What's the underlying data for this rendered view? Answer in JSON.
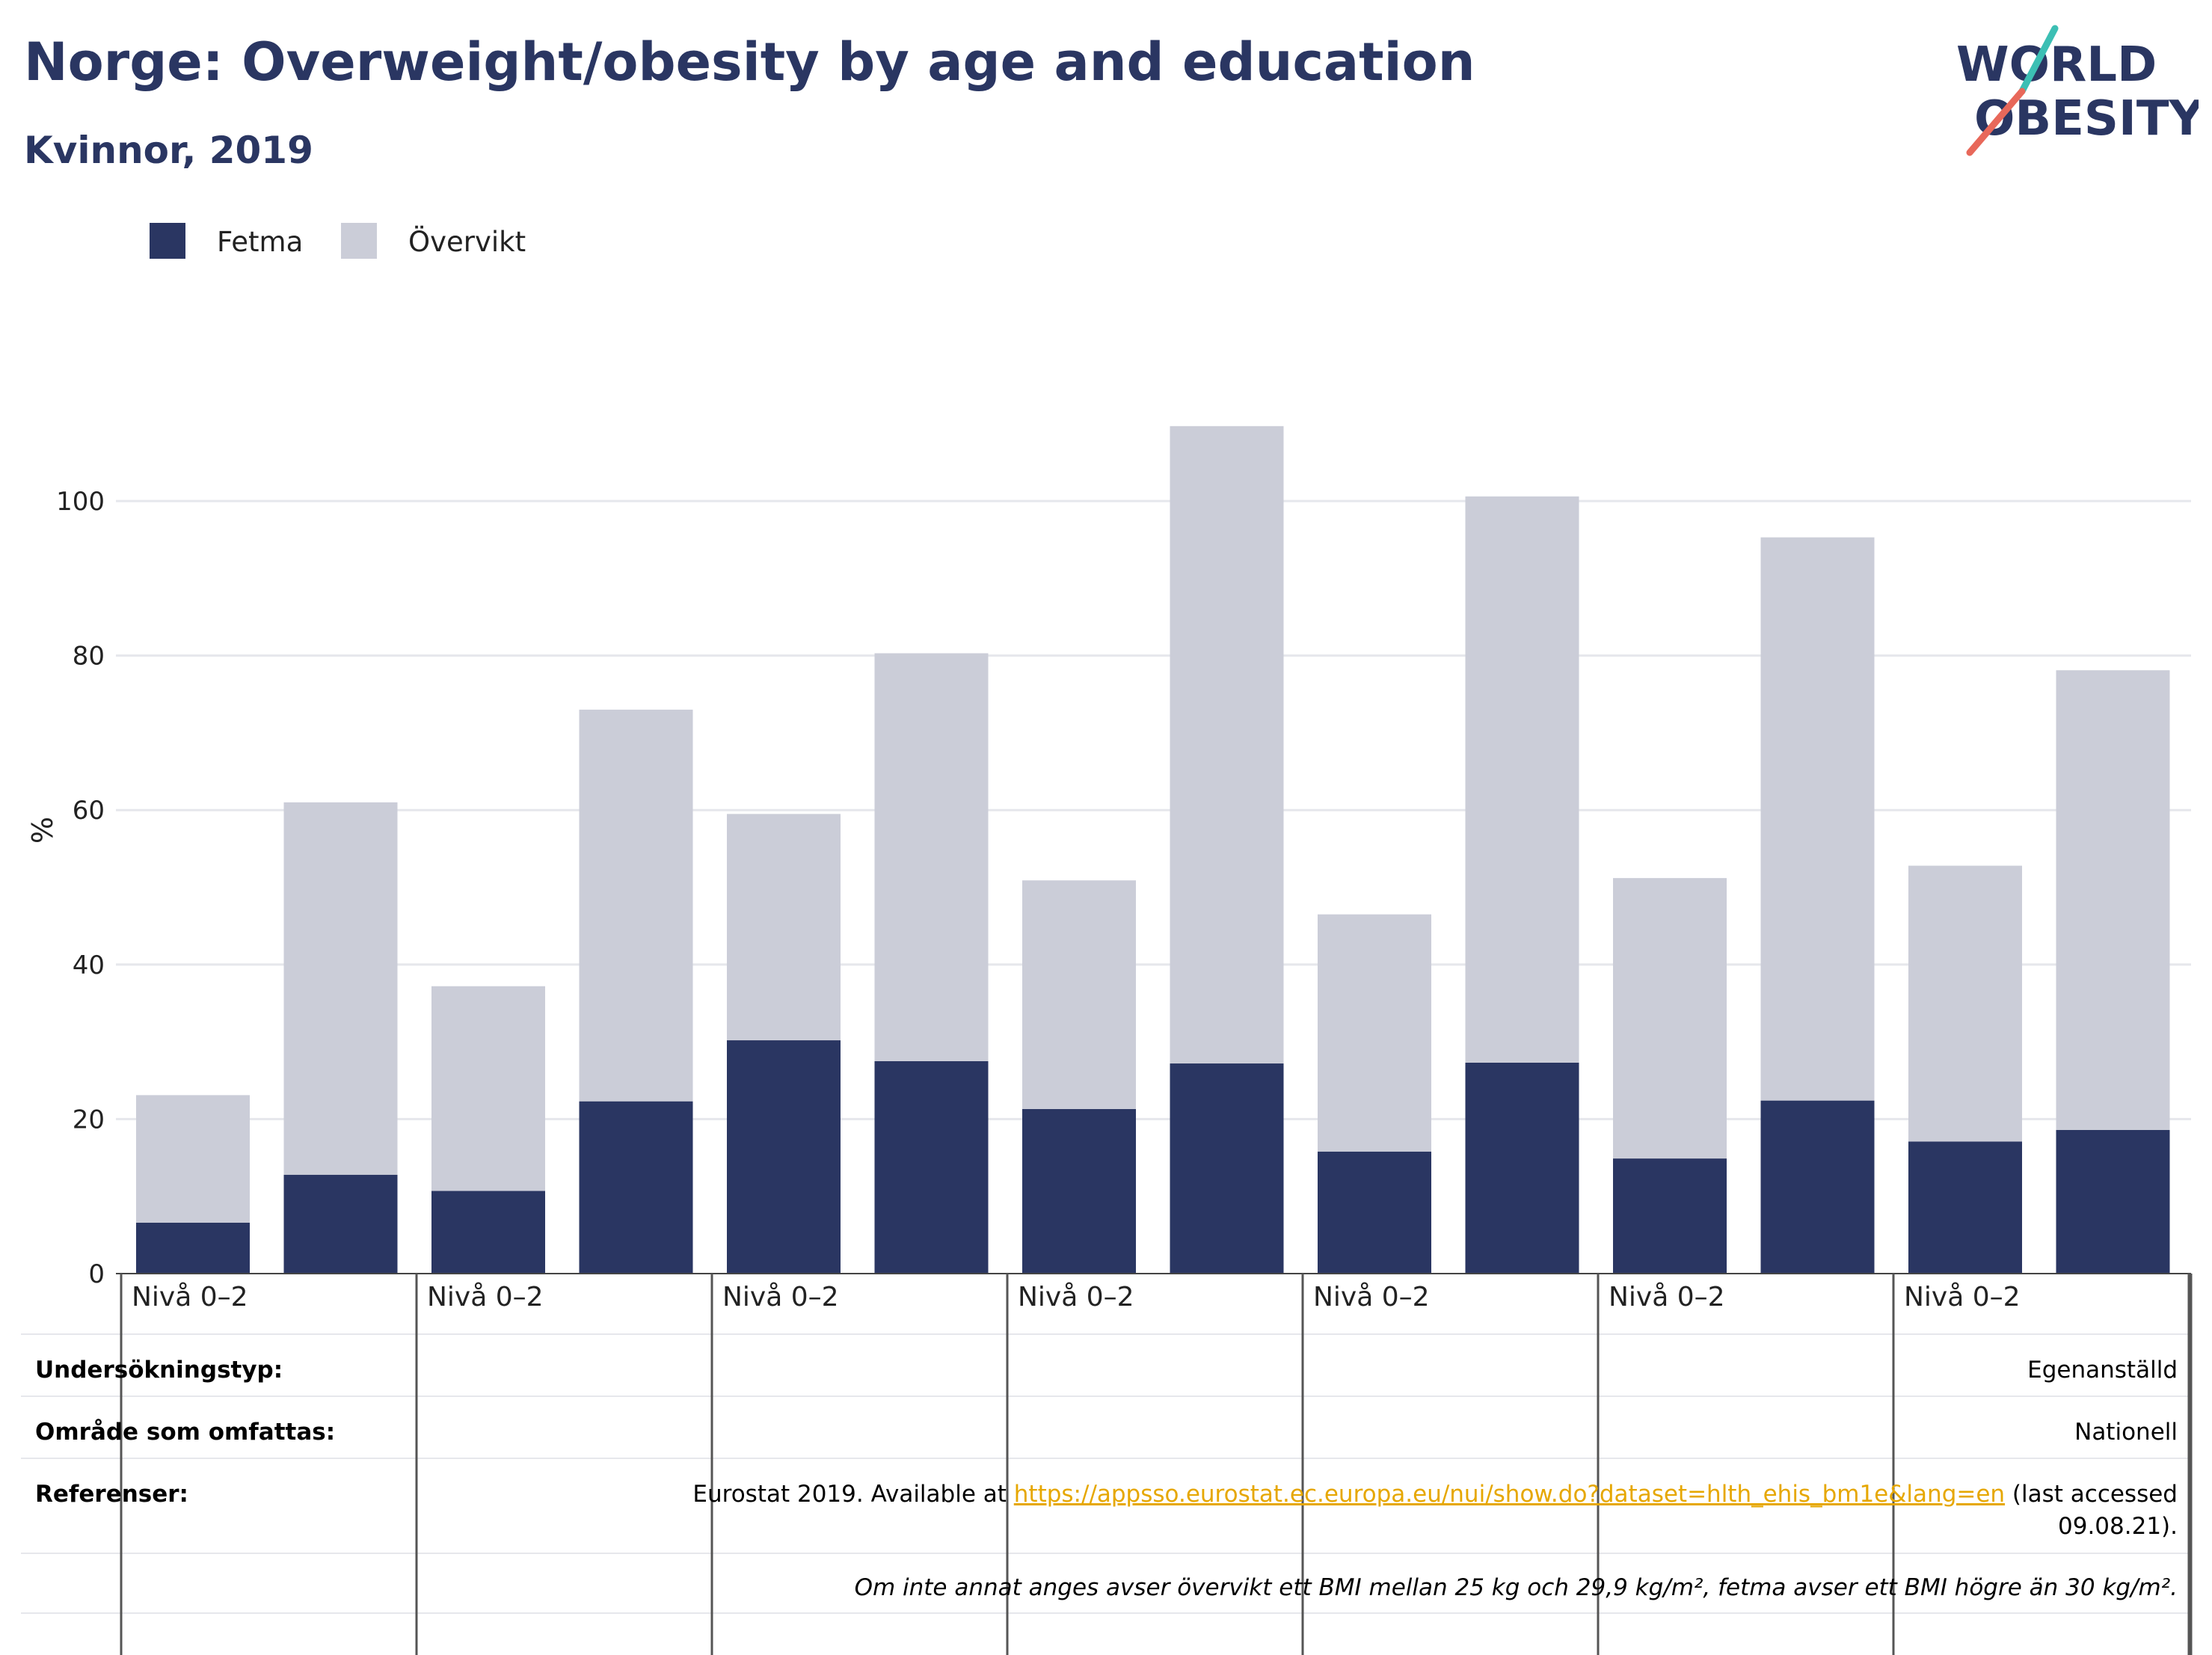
{
  "header": {
    "title": "Norge: Overweight/obesity by age and education",
    "subtitle": "Kvinnor, 2019"
  },
  "logo": {
    "line1": "WORLD",
    "line2": "OBESITY",
    "slash_color_top": "#3cbfb4",
    "slash_color_bottom": "#e8685a"
  },
  "legend": [
    {
      "name": "Fetma",
      "color": "#2a3662"
    },
    {
      "name": "Övervikt",
      "color": "#cbcdd8"
    }
  ],
  "chart_data": {
    "type": "bar",
    "stacked": true,
    "ylabel": "%",
    "ylim": [
      0,
      110
    ],
    "yticks": [
      0,
      20,
      40,
      60,
      80,
      100
    ],
    "grid": true,
    "legend_position": "top-left",
    "group_labels": [
      "Nivå 0–2",
      "Nivå 0–2",
      "Nivå 0–2",
      "Nivå 0–2",
      "Nivå 0–2",
      "Nivå 0–2",
      "Nivå 0–2"
    ],
    "bars_per_group": 2,
    "series": [
      {
        "name": "Fetma",
        "color": "#2a3662",
        "values": [
          6.6,
          12.8,
          10.7,
          22.3,
          30.2,
          27.5,
          21.3,
          27.2,
          15.8,
          27.3,
          14.9,
          22.4,
          17.1,
          18.6
        ]
      },
      {
        "name": "Övervikt",
        "color": "#cbcdd8",
        "values": [
          16.5,
          48.2,
          26.5,
          50.7,
          29.3,
          52.8,
          29.6,
          82.5,
          30.7,
          73.3,
          36.3,
          72.9,
          35.7,
          59.5
        ]
      }
    ]
  },
  "table": {
    "rows": [
      {
        "label": "Undersökningstyp:",
        "value": "Egenanställd"
      },
      {
        "label": "Område som omfattas:",
        "value": "Nationell"
      },
      {
        "label": "Referenser:",
        "value_prefix": "Eurostat 2019. Available at ",
        "link": "https://appsso.eurostat.ec.europa.eu/nui/show.do?dataset=hlth_ehis_bm1e&lang=en",
        "value_suffix": " (last accessed",
        "value_line2": "09.08.21)."
      }
    ],
    "footnote": "Om inte annat anges avser övervikt ett BMI mellan 25 kg och 29,9 kg/m², fetma avser ett BMI högre än 30 kg/m²."
  }
}
